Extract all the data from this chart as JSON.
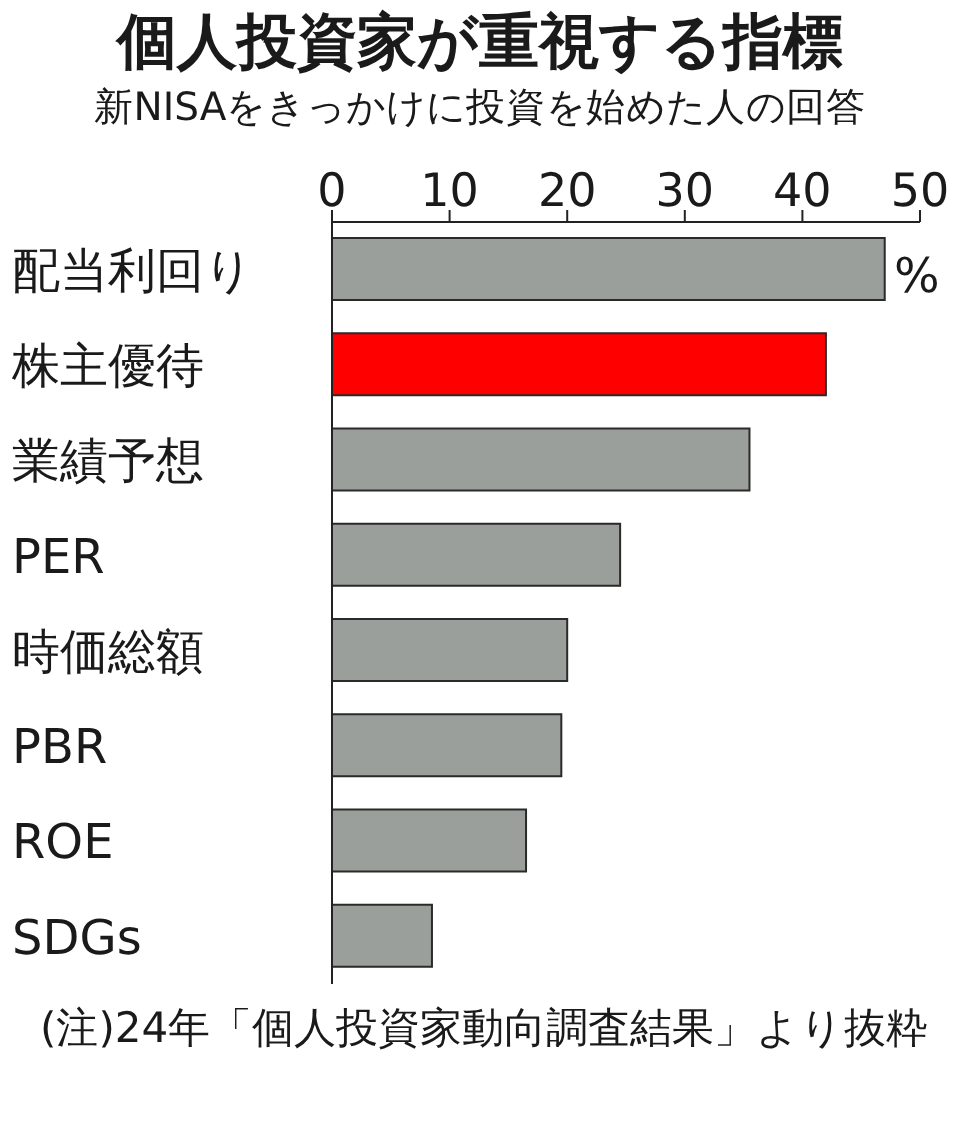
{
  "chart_data": {
    "type": "bar",
    "orientation": "horizontal",
    "title": "個人投資家が重視する指標",
    "subtitle": "新NISAをきっかけに投資を始めた人の回答",
    "xlabel": "%",
    "categories": [
      "配当利回り",
      "株主優待",
      "業績予想",
      "PER",
      "時価総額",
      "PBR",
      "ROE",
      "SDGs"
    ],
    "values": [
      47,
      42,
      35.5,
      24.5,
      20,
      19.5,
      16.5,
      8.5
    ],
    "colors": [
      "#9a9f9b",
      "#ff0000",
      "#9a9f9b",
      "#9a9f9b",
      "#9a9f9b",
      "#9a9f9b",
      "#9a9f9b",
      "#9a9f9b"
    ],
    "xlim": [
      0,
      50
    ],
    "xticks": [
      0,
      10,
      20,
      30,
      40,
      50
    ],
    "grid": false,
    "legend": false,
    "annotations": [
      "(注)24年「個人投資家動向調査結果」より抜粋"
    ]
  }
}
